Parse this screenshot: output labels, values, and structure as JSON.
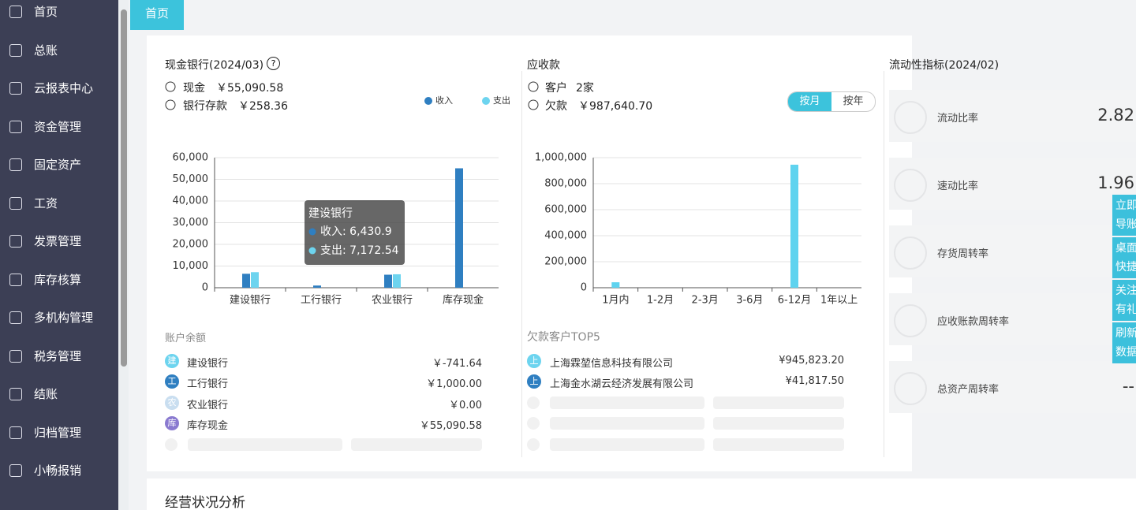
{
  "sidebar": {
    "items": [
      "首页",
      "总账",
      "云报表中心",
      "资金管理",
      "固定资产",
      "工资",
      "发票管理",
      "库存核算",
      "多机构管理",
      "税务管理",
      "结账",
      "归档管理",
      "小畅报销"
    ]
  },
  "tab": "首页",
  "cash_bank": {
    "title": "现金银行(2024/03)",
    "cash_label": "现金",
    "cash_amount": "￥55,090.58",
    "bank_label": "银行存款",
    "bank_amount": "￥258.36",
    "tooltip": {
      "title": "建设银行",
      "lines": [
        "收入: 6,430.9",
        "支出: 7,172.54"
      ]
    },
    "balance_title": "账户余额",
    "accounts": [
      {
        "icon": "建",
        "name": "建设银行",
        "amount": "￥-741.64"
      },
      {
        "icon": "工",
        "name": "工行银行",
        "amount": "￥1,000.00"
      },
      {
        "icon": "农",
        "name": "农业银行",
        "amount": "￥0.00"
      },
      {
        "icon": "库",
        "name": "库存现金",
        "amount": "￥55,090.58"
      }
    ]
  },
  "receivables": {
    "title": "应收款",
    "customer_label": "客户",
    "customer_count": "2家",
    "debt_label": "欠款",
    "debt_amount": "￥987,640.70",
    "buttons": [
      "按月",
      "按年"
    ],
    "top_title": "欠款客户TOP5",
    "customers": [
      {
        "icon": "上",
        "name": "上海霖堃信息科技有限公司",
        "amount": "¥945,823.20"
      },
      {
        "icon": "上",
        "name": "上海金水湖云经济发展有限公司",
        "amount": "¥41,817.50"
      }
    ]
  },
  "liquidity": {
    "title": "流动性指标(2024/02)",
    "items": [
      {
        "name": "流动比率",
        "value": 2.82
      },
      {
        "name": "速动比率",
        "value": 1.96
      },
      {
        "name": "存货周转率"
      },
      {
        "name": "应收账款周转率"
      },
      {
        "name": "总资产周转率",
        "value": "--"
      }
    ]
  },
  "float_buttons": [
    "立即导账",
    "桌面快捷",
    "关注有礼",
    "刷新数据"
  ],
  "section_title": "经营状况分析",
  "chart_data": [
    {
      "type": "bar",
      "categories": [
        "建设银行",
        "工行银行",
        "农业银行",
        "库存现金"
      ],
      "series": [
        {
          "name": "收入",
          "color": "#2f7fc1",
          "values": [
            6430.9,
            1000,
            6000,
            55090.58
          ]
        },
        {
          "name": "支出",
          "color": "#6dd4ef",
          "values": [
            7172.54,
            0,
            6200,
            0
          ]
        }
      ],
      "ylim": [
        0,
        60000
      ],
      "yticks": [
        0,
        {
          "value": 10000,
          "label": "10,000"
        },
        {
          "value": 20000,
          "label": "20,000"
        },
        {
          "value": 30000,
          "label": "30,000"
        },
        {
          "value": 40000,
          "label": "40,000"
        },
        {
          "value": 50000,
          "label": "50,000"
        },
        {
          "value": 60000,
          "label": "60,000"
        }
      ],
      "grid": true
    },
    {
      "type": "bar",
      "categories": [
        "1月内",
        "1-2月",
        "2-3月",
        "3-6月",
        "6-12月",
        "1年以上"
      ],
      "series": [
        {
          "color": "#5fd3ef",
          "values": [
            41817.5,
            0,
            0,
            0,
            945823.2,
            0
          ]
        }
      ],
      "ylim": [
        0,
        1000000
      ],
      "yticks": [
        0,
        {
          "value": 200000,
          "label": "200,000"
        },
        {
          "value": 400000,
          "label": "400,000"
        },
        {
          "value": 600000,
          "label": "600,000"
        },
        {
          "value": 800000,
          "label": "800,000"
        },
        {
          "value": 1000000,
          "label": "1,000,000"
        }
      ],
      "grid": true
    }
  ]
}
